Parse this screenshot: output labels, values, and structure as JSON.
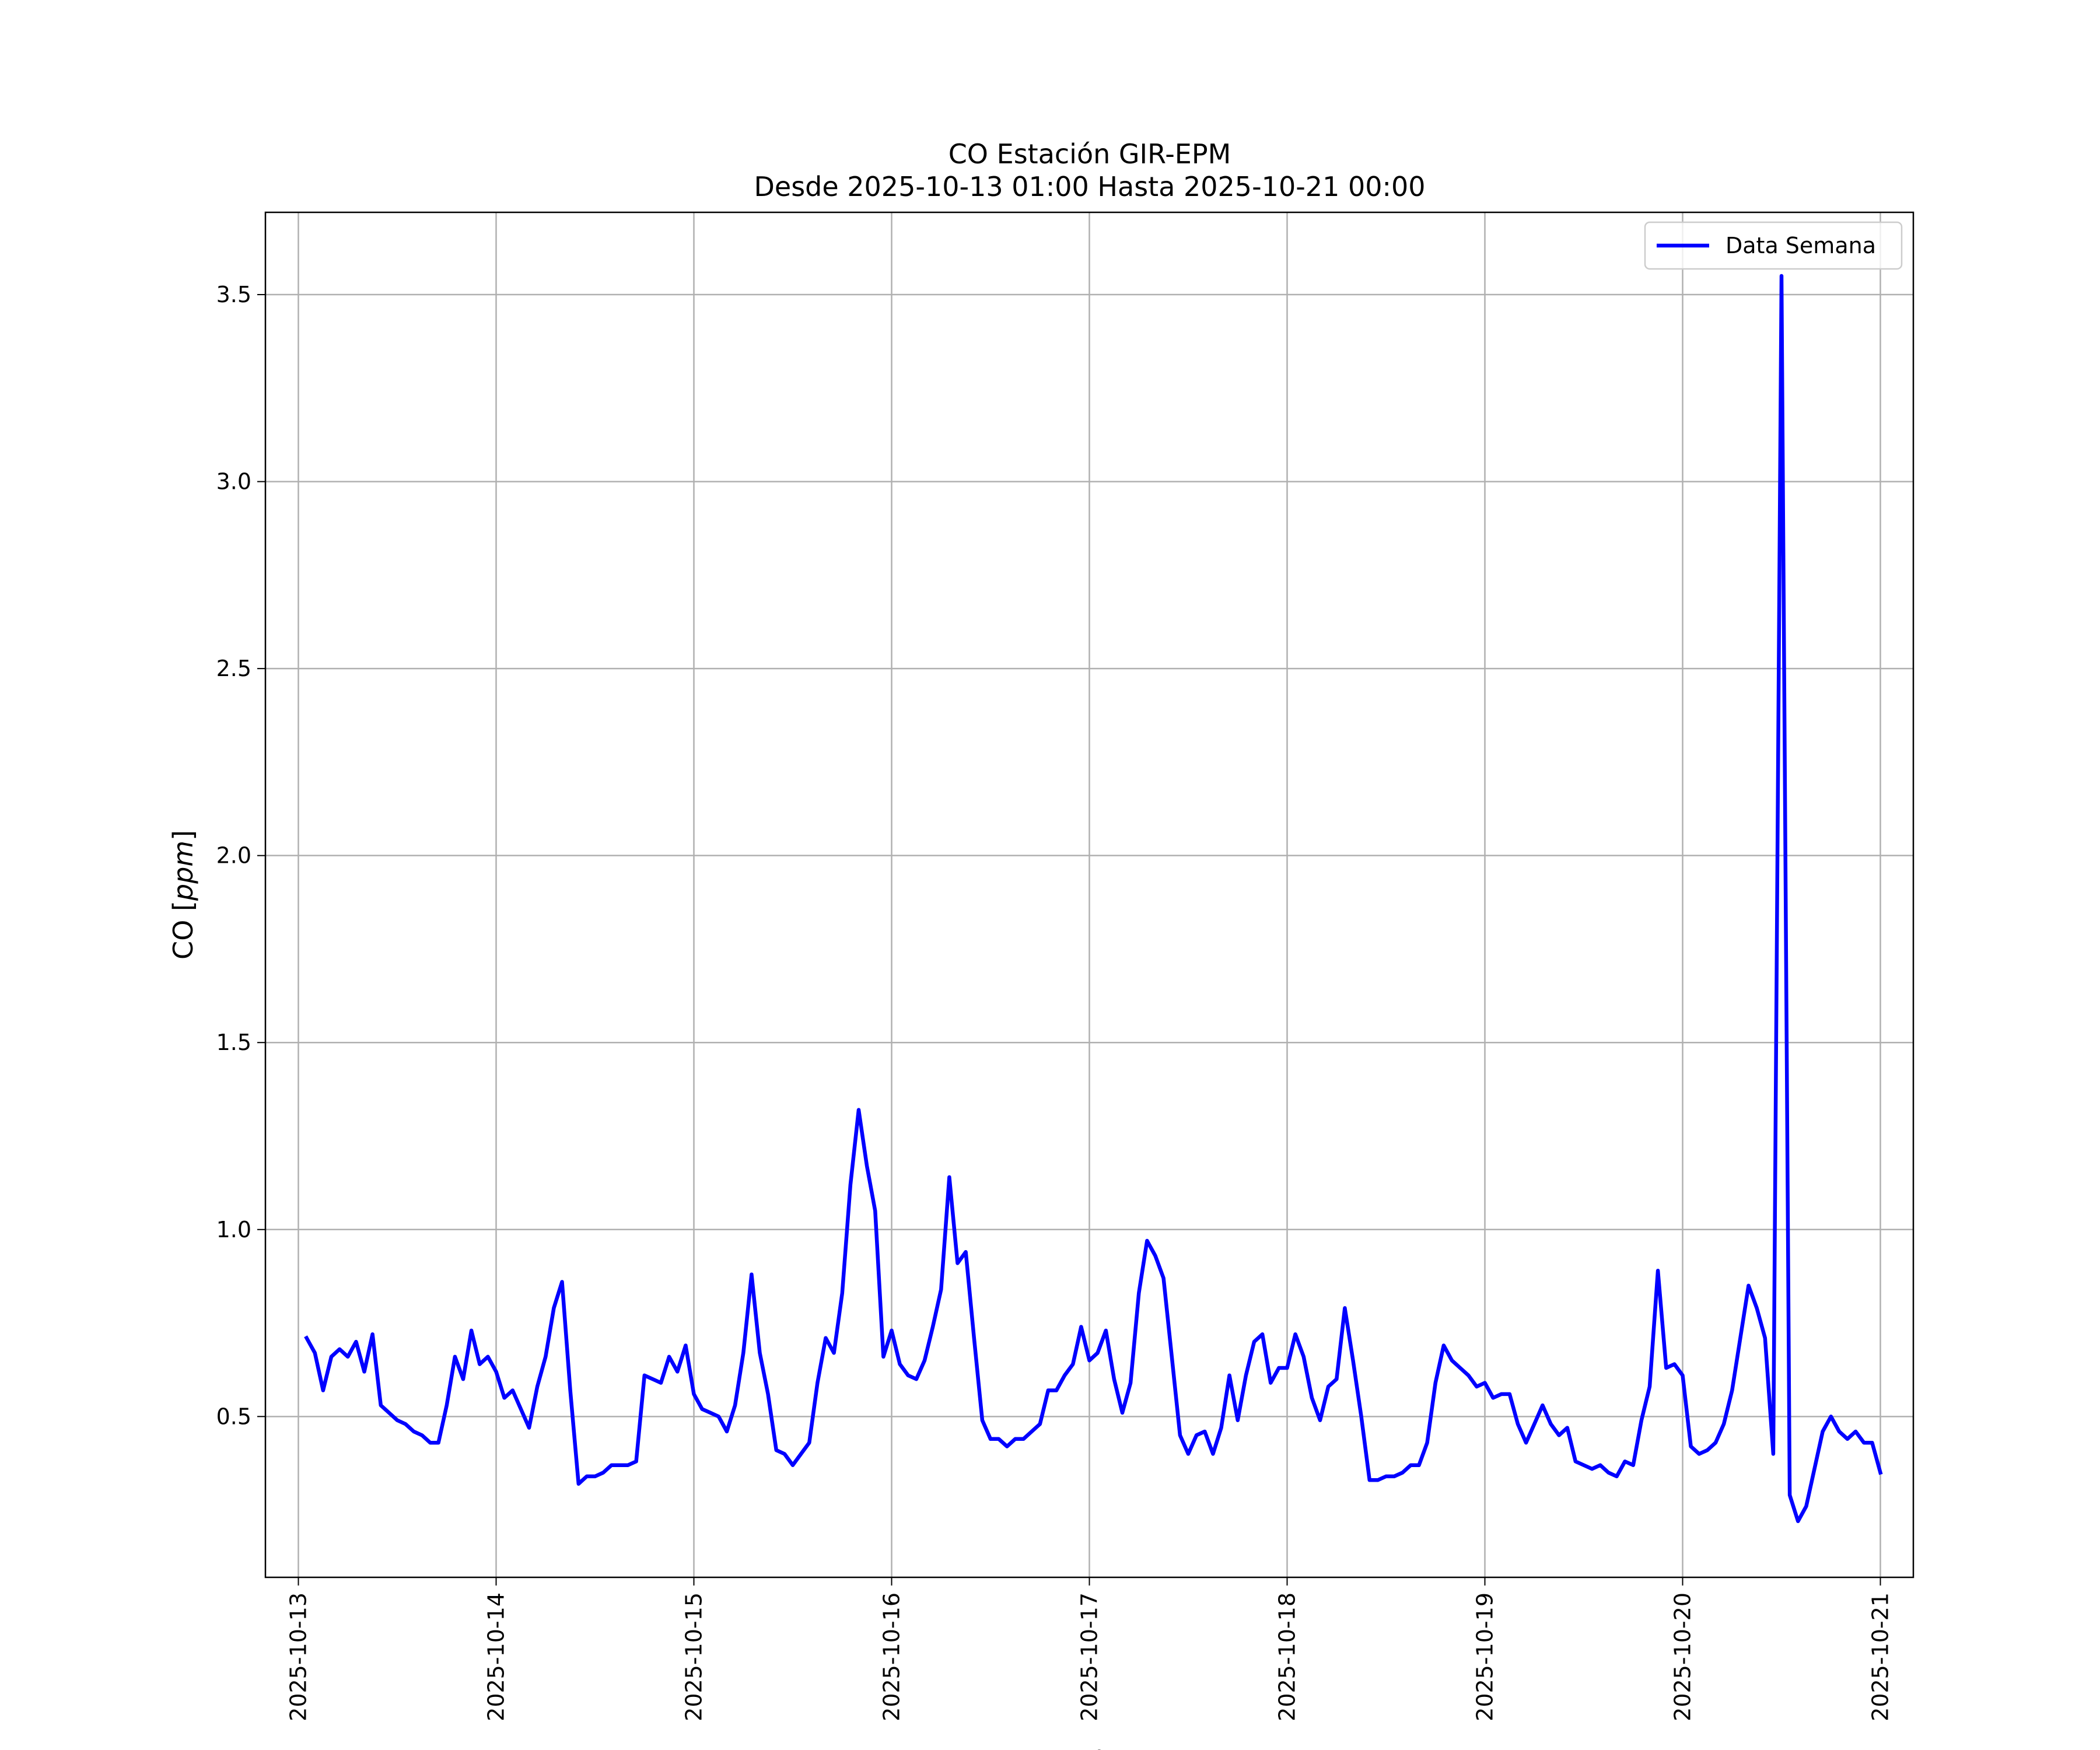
{
  "chart_data": {
    "type": "line",
    "title": "CO Estación GIR-EPM",
    "subtitle": "Desde 2025-10-13 01:00 Hasta 2025-10-21 00:00",
    "xlabel": "Fecha",
    "ylabel": "CO [ppm]",
    "ylabel_parts": {
      "plain": "CO [",
      "italic": "ppm",
      "end": "]"
    },
    "xlim": [
      "2025-10-12 20:00",
      "2025-10-21 04:00"
    ],
    "ylim": [
      0.07,
      3.72
    ],
    "x_ticks": [
      "2025-10-13",
      "2025-10-14",
      "2025-10-15",
      "2025-10-16",
      "2025-10-17",
      "2025-10-18",
      "2025-10-19",
      "2025-10-20",
      "2025-10-21"
    ],
    "y_ticks": [
      "0.5",
      "1.0",
      "1.5",
      "2.0",
      "2.5",
      "3.0",
      "3.5"
    ],
    "grid": true,
    "legend_position": "top-right",
    "x_start": "2025-10-13 01:00",
    "x_step_hours": 1,
    "series": [
      {
        "name": "Data Semana",
        "color": "#0000ff",
        "values": [
          0.71,
          0.67,
          0.57,
          0.66,
          0.68,
          0.66,
          0.7,
          0.62,
          0.72,
          0.53,
          0.51,
          0.49,
          0.48,
          0.46,
          0.45,
          0.43,
          0.43,
          0.53,
          0.66,
          0.6,
          0.73,
          0.64,
          0.66,
          0.62,
          0.55,
          0.57,
          0.52,
          0.47,
          0.58,
          0.66,
          0.79,
          0.86,
          0.57,
          0.32,
          0.34,
          0.34,
          0.35,
          0.37,
          0.37,
          0.37,
          0.38,
          0.61,
          0.6,
          0.59,
          0.66,
          0.62,
          0.69,
          0.56,
          0.52,
          0.51,
          0.5,
          0.46,
          0.53,
          0.67,
          0.88,
          0.67,
          0.56,
          0.41,
          0.4,
          0.37,
          0.4,
          0.43,
          0.59,
          0.71,
          0.67,
          0.83,
          1.12,
          1.32,
          1.17,
          1.05,
          0.66,
          0.73,
          0.64,
          0.61,
          0.6,
          0.65,
          0.74,
          0.84,
          1.14,
          0.91,
          0.94,
          0.71,
          0.49,
          0.44,
          0.44,
          0.42,
          0.44,
          0.44,
          0.46,
          0.48,
          0.57,
          0.57,
          0.61,
          0.64,
          0.74,
          0.65,
          0.67,
          0.73,
          0.6,
          0.51,
          0.59,
          0.83,
          0.97,
          0.93,
          0.87,
          0.66,
          0.45,
          0.4,
          0.45,
          0.46,
          0.4,
          0.47,
          0.61,
          0.49,
          0.61,
          0.7,
          0.72,
          0.59,
          0.63,
          0.63,
          0.72,
          0.66,
          0.55,
          0.49,
          0.58,
          0.6,
          0.79,
          0.65,
          0.5,
          0.33,
          0.33,
          0.34,
          0.34,
          0.35,
          0.37,
          0.37,
          0.43,
          0.59,
          0.69,
          0.65,
          0.63,
          0.61,
          0.58,
          0.59,
          0.55,
          0.56,
          0.56,
          0.48,
          0.43,
          0.48,
          0.53,
          0.48,
          0.45,
          0.47,
          0.38,
          0.37,
          0.36,
          0.37,
          0.35,
          0.34,
          0.38,
          0.37,
          0.49,
          0.58,
          0.89,
          0.63,
          0.64,
          0.61,
          0.42,
          0.4,
          0.41,
          0.43,
          0.48,
          0.57,
          0.71,
          0.85,
          0.79,
          0.71,
          0.4,
          3.55,
          0.29,
          0.22,
          0.26,
          0.36,
          0.46,
          0.5,
          0.46,
          0.44,
          0.46,
          0.43,
          0.43,
          0.35
        ]
      }
    ]
  }
}
